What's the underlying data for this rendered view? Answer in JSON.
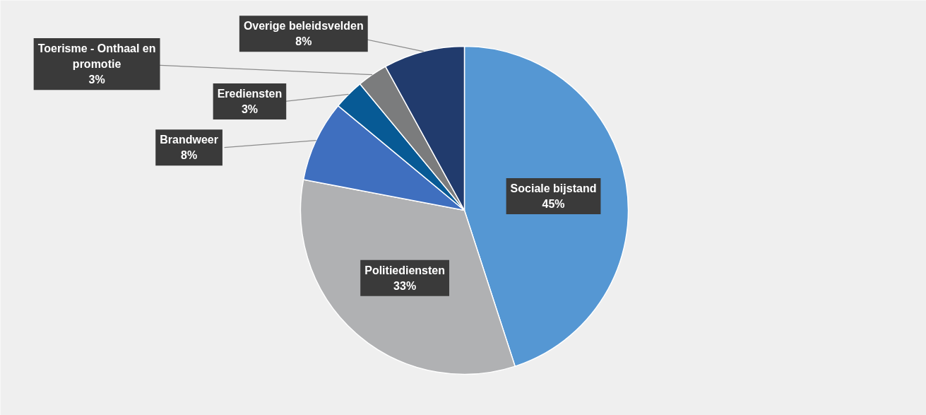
{
  "chart_data": {
    "type": "pie",
    "categories": [
      "Sociale bijstand",
      "Politiediensten",
      "Brandweer",
      "Erediensten",
      "Toerisme - Onthaal en promotie",
      "Overige beleidsvelden"
    ],
    "values": [
      45,
      33,
      8,
      3,
      3,
      8
    ],
    "value_labels": [
      "45%",
      "33%",
      "8%",
      "3%",
      "3%",
      "8%"
    ],
    "colors": [
      "#5597d3",
      "#b0b1b3",
      "#3f6fbf",
      "#075a95",
      "#7b7c7d",
      "#213b6d"
    ]
  }
}
